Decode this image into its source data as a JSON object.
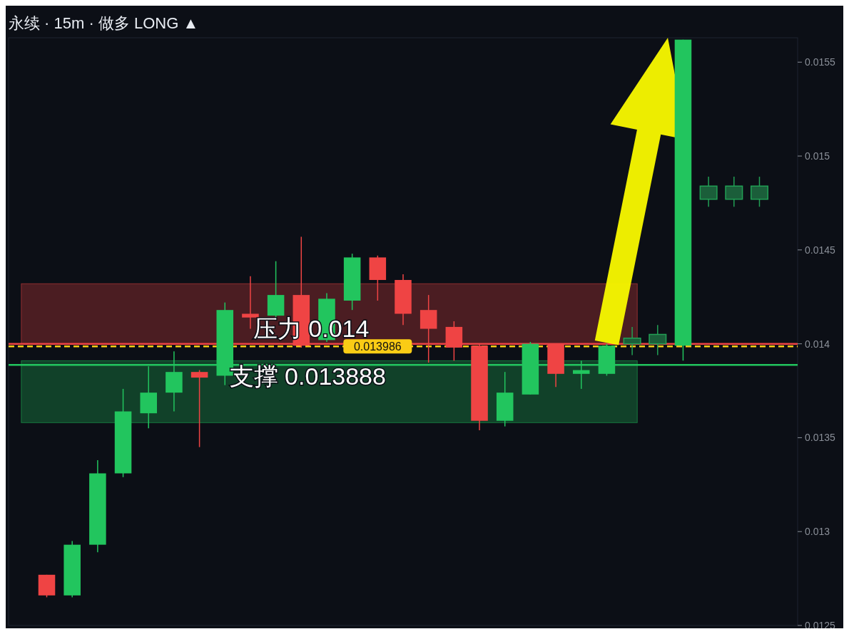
{
  "chart_data": {
    "type": "candlestick",
    "title": "永续 · 15m · 做多 LONG ▲",
    "categories": [
      null,
      null,
      null,
      null,
      null,
      null,
      null,
      null,
      null,
      null,
      null,
      null,
      null,
      null,
      null,
      null,
      null,
      null,
      null,
      null,
      null,
      null,
      null,
      null,
      null,
      null,
      null,
      null,
      null
    ],
    "ohlc": [
      [
        0.01277,
        0.01277,
        0.01265,
        0.01266
      ],
      [
        0.01266,
        0.01295,
        0.01265,
        0.01293
      ],
      [
        0.01293,
        0.01338,
        0.01289,
        0.01331
      ],
      [
        0.01331,
        0.01376,
        0.01329,
        0.01364
      ],
      [
        0.01363,
        0.01388,
        0.01355,
        0.01374
      ],
      [
        0.01374,
        0.01396,
        0.01364,
        0.01385
      ],
      [
        0.01385,
        0.01386,
        0.01345,
        0.01382
      ],
      [
        0.01383,
        0.01422,
        0.01378,
        0.01418
      ],
      [
        0.01416,
        0.01436,
        0.01408,
        0.01414
      ],
      [
        0.01415,
        0.01444,
        0.01413,
        0.01426
      ],
      [
        0.01426,
        0.01457,
        0.01398,
        0.01399
      ],
      [
        0.01402,
        0.01427,
        0.01401,
        0.01424
      ],
      [
        0.01423,
        0.01448,
        0.01418,
        0.01446
      ],
      [
        0.01446,
        0.01447,
        0.01423,
        0.01434
      ],
      [
        0.01434,
        0.01437,
        0.0141,
        0.01416
      ],
      [
        0.01418,
        0.01426,
        0.0139,
        0.01408
      ],
      [
        0.01409,
        0.01412,
        0.01391,
        0.01398
      ],
      [
        0.01399,
        0.014,
        0.01354,
        0.01359
      ],
      [
        0.01359,
        0.01385,
        0.01356,
        0.01374
      ],
      [
        0.01373,
        0.01401,
        0.01373,
        0.014
      ],
      [
        0.014,
        0.014,
        0.01377,
        0.01384
      ],
      [
        0.01384,
        0.01391,
        0.01376,
        0.01386
      ],
      [
        0.01384,
        0.014,
        0.01383,
        0.01399
      ],
      [
        0.014,
        0.01409,
        0.01394,
        0.01403
      ],
      [
        0.014,
        0.0141,
        0.01394,
        0.01405
      ],
      [
        0.01399,
        0.01562,
        0.01391,
        0.01562
      ],
      [
        0.01477,
        0.01489,
        0.01473,
        0.01484
      ],
      [
        0.01477,
        0.01489,
        0.01473,
        0.01484
      ],
      [
        0.01477,
        0.01489,
        0.01473,
        0.01484
      ]
    ],
    "colors": [
      "#ef4444",
      "#22c55e",
      "#22c55e",
      "#22c55e",
      "#22c55e",
      "#22c55e",
      "#ef4444",
      "#22c55e",
      "#ef4444",
      "#22c55e",
      "#ef4444",
      "#22c55e",
      "#22c55e",
      "#ef4444",
      "#ef4444",
      "#ef4444",
      "#ef4444",
      "#ef4444",
      "#22c55e",
      "#22c55e",
      "#ef4444",
      "#22c55e",
      "#22c55e",
      "#1b5e3a",
      "#1b5e3a",
      "#22c55e",
      "#1b5e3a",
      "#1b5e3a",
      "#1b5e3a"
    ],
    "ylim": [
      0.0125,
      0.01563
    ],
    "yticks": [
      0.0125,
      0.013,
      0.0135,
      0.014,
      0.0145,
      0.015,
      0.0155
    ],
    "tick_labels": "y",
    "ref_lines": [
      {
        "axis": "y",
        "value": 0.014,
        "label": "压力 0.014",
        "color": "#ef4444",
        "line_style": "solid"
      },
      {
        "axis": "y",
        "value": 0.013986,
        "label": "0.013986",
        "color": "#facc15",
        "line_style": "dashed"
      },
      {
        "axis": "y",
        "value": 0.013888,
        "label": "支撑 0.013888",
        "color": "#22c55e",
        "line_style": "solid"
      }
    ],
    "bands": [
      {
        "axis": "y",
        "from": 0.014,
        "to": 0.01432,
        "color": "#ef4444"
      },
      {
        "axis": "y",
        "from": 0.01358,
        "to": 0.01391,
        "color": "#22c55e"
      }
    ]
  }
}
